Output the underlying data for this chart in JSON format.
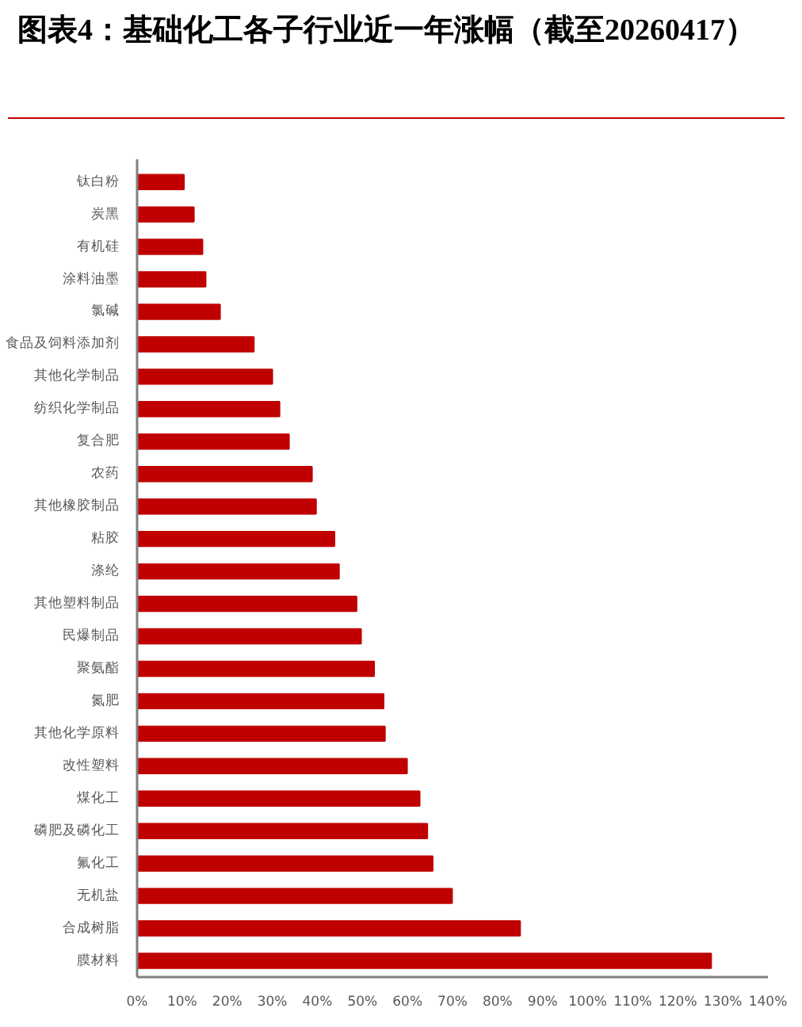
{
  "chart_data": {
    "type": "bar",
    "orientation": "horizontal",
    "title": "图表4：基础化工各子行业近一年涨幅（截至20260417）",
    "categories": [
      "钛白粉",
      "炭黑",
      "有机硅",
      "涂料油墨",
      "氯碱",
      "食品及饲料添加剂",
      "其他化学制品",
      "纺织化学制品",
      "复合肥",
      "农药",
      "其他橡胶制品",
      "粘胶",
      "涤纶",
      "其他塑料制品",
      "民爆制品",
      "聚氨酯",
      "氮肥",
      "其他化学原料",
      "改性塑料",
      "煤化工",
      "磷肥及磷化工",
      "氟化工",
      "无机盐",
      "合成树脂",
      "膜材料"
    ],
    "values": [
      10.4,
      12.6,
      14.5,
      15.2,
      18.4,
      25.9,
      30.0,
      31.6,
      33.7,
      38.8,
      39.7,
      43.8,
      44.8,
      48.7,
      49.7,
      52.6,
      54.7,
      55.0,
      59.9,
      62.7,
      64.4,
      65.6,
      69.9,
      85.0,
      127.4
    ],
    "color": "#c00000",
    "xlim": [
      0,
      140
    ],
    "xticks": [
      {
        "value": 0,
        "label": "0%"
      },
      {
        "value": 10,
        "label": "10%"
      },
      {
        "value": 20,
        "label": "20%"
      },
      {
        "value": 30,
        "label": "30%"
      },
      {
        "value": 40,
        "label": "40%"
      },
      {
        "value": 50,
        "label": "50%"
      },
      {
        "value": 60,
        "label": "60%"
      },
      {
        "value": 70,
        "label": "70%"
      },
      {
        "value": 80,
        "label": "80%"
      },
      {
        "value": 90,
        "label": "90%"
      },
      {
        "value": 100,
        "label": "100%"
      },
      {
        "value": 110,
        "label": "110%"
      },
      {
        "value": 120,
        "label": "120%"
      },
      {
        "value": 130,
        "label": "130%"
      },
      {
        "value": 140,
        "label": "140%"
      }
    ]
  }
}
